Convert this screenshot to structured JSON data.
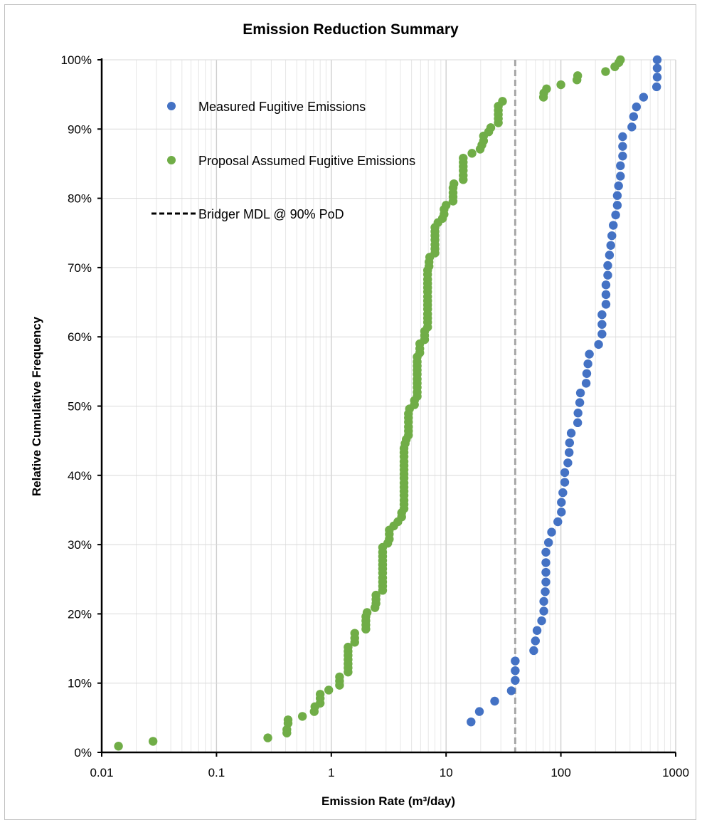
{
  "chart_data": {
    "type": "scatter",
    "title": "Emission Reduction Summary",
    "xlabel": "Emission Rate (m³/day)",
    "ylabel": "Relative Cumulative Frequency",
    "x_scale": "log",
    "xlim": [
      0.01,
      1000
    ],
    "ylim": [
      0,
      1
    ],
    "x_ticks": [
      "0.01",
      "0.1",
      "1",
      "10",
      "100",
      "1000"
    ],
    "y_ticks": [
      "0%",
      "10%",
      "20%",
      "30%",
      "40%",
      "50%",
      "60%",
      "70%",
      "80%",
      "90%",
      "100%"
    ],
    "grid": true,
    "legend_position": "top-left",
    "series": [
      {
        "name": "Measured Fugitive Emissions",
        "color": "#4472c4",
        "marker": "circle",
        "points": [
          [
            16.5,
            0.044
          ],
          [
            19.5,
            0.059
          ],
          [
            26.5,
            0.074
          ],
          [
            37,
            0.089
          ],
          [
            40,
            0.104
          ],
          [
            40,
            0.118
          ],
          [
            40,
            0.132
          ],
          [
            58,
            0.147
          ],
          [
            60,
            0.161
          ],
          [
            62,
            0.176
          ],
          [
            68,
            0.19
          ],
          [
            71,
            0.204
          ],
          [
            71,
            0.218
          ],
          [
            73,
            0.232
          ],
          [
            74,
            0.246
          ],
          [
            74,
            0.26
          ],
          [
            74,
            0.274
          ],
          [
            74,
            0.289
          ],
          [
            78,
            0.303
          ],
          [
            83,
            0.318
          ],
          [
            94,
            0.333
          ],
          [
            101,
            0.347
          ],
          [
            101,
            0.361
          ],
          [
            104,
            0.375
          ],
          [
            108,
            0.39
          ],
          [
            108,
            0.404
          ],
          [
            115,
            0.418
          ],
          [
            118,
            0.433
          ],
          [
            119,
            0.447
          ],
          [
            123,
            0.461
          ],
          [
            140,
            0.476
          ],
          [
            141,
            0.49
          ],
          [
            146,
            0.505
          ],
          [
            148,
            0.519
          ],
          [
            166,
            0.533
          ],
          [
            168,
            0.547
          ],
          [
            172,
            0.561
          ],
          [
            177,
            0.575
          ],
          [
            213,
            0.589
          ],
          [
            228,
            0.604
          ],
          [
            228,
            0.618
          ],
          [
            228,
            0.632
          ],
          [
            247,
            0.647
          ],
          [
            247,
            0.661
          ],
          [
            247,
            0.675
          ],
          [
            256,
            0.689
          ],
          [
            256,
            0.703
          ],
          [
            265,
            0.718
          ],
          [
            272,
            0.732
          ],
          [
            278,
            0.746
          ],
          [
            286,
            0.761
          ],
          [
            300,
            0.776
          ],
          [
            310,
            0.79
          ],
          [
            310,
            0.804
          ],
          [
            318,
            0.818
          ],
          [
            330,
            0.832
          ],
          [
            330,
            0.847
          ],
          [
            345,
            0.861
          ],
          [
            345,
            0.875
          ],
          [
            345,
            0.889
          ],
          [
            415,
            0.903
          ],
          [
            430,
            0.918
          ],
          [
            455,
            0.932
          ],
          [
            525,
            0.946
          ],
          [
            682,
            0.961
          ],
          [
            690,
            0.975
          ],
          [
            690,
            0.988
          ],
          [
            690,
            1.0
          ]
        ]
      },
      {
        "name": "Proposal Assumed Fugitive Emissions",
        "color": "#70ad47",
        "marker": "circle",
        "points": [
          [
            0.014,
            0.009
          ],
          [
            0.028,
            0.016
          ],
          [
            0.28,
            0.021
          ],
          [
            0.41,
            0.028
          ],
          [
            0.41,
            0.033
          ],
          [
            0.42,
            0.042
          ],
          [
            0.42,
            0.047
          ],
          [
            0.56,
            0.052
          ],
          [
            0.71,
            0.059
          ],
          [
            0.72,
            0.066
          ],
          [
            0.8,
            0.071
          ],
          [
            0.8,
            0.078
          ],
          [
            0.8,
            0.084
          ],
          [
            0.95,
            0.09
          ],
          [
            1.18,
            0.097
          ],
          [
            1.18,
            0.103
          ],
          [
            1.18,
            0.109
          ],
          [
            1.4,
            0.116
          ],
          [
            1.4,
            0.122
          ],
          [
            1.4,
            0.128
          ],
          [
            1.4,
            0.134
          ],
          [
            1.4,
            0.14
          ],
          [
            1.4,
            0.146
          ],
          [
            1.4,
            0.152
          ],
          [
            1.6,
            0.159
          ],
          [
            1.6,
            0.165
          ],
          [
            1.6,
            0.172
          ],
          [
            2.0,
            0.178
          ],
          [
            2.0,
            0.184
          ],
          [
            2.0,
            0.19
          ],
          [
            2.0,
            0.196
          ],
          [
            2.05,
            0.202
          ],
          [
            2.4,
            0.209
          ],
          [
            2.45,
            0.215
          ],
          [
            2.45,
            0.221
          ],
          [
            2.45,
            0.227
          ],
          [
            2.8,
            0.234
          ],
          [
            2.8,
            0.24
          ],
          [
            2.8,
            0.246
          ],
          [
            2.8,
            0.252
          ],
          [
            2.8,
            0.259
          ],
          [
            2.8,
            0.265
          ],
          [
            2.8,
            0.271
          ],
          [
            2.8,
            0.277
          ],
          [
            2.8,
            0.283
          ],
          [
            2.8,
            0.289
          ],
          [
            2.8,
            0.296
          ],
          [
            3.1,
            0.302
          ],
          [
            3.2,
            0.308
          ],
          [
            3.2,
            0.315
          ],
          [
            3.2,
            0.321
          ],
          [
            3.5,
            0.327
          ],
          [
            3.8,
            0.333
          ],
          [
            4.1,
            0.34
          ],
          [
            4.1,
            0.346
          ],
          [
            4.3,
            0.352
          ],
          [
            4.3,
            0.358
          ],
          [
            4.3,
            0.364
          ],
          [
            4.3,
            0.371
          ],
          [
            4.3,
            0.377
          ],
          [
            4.3,
            0.383
          ],
          [
            4.3,
            0.389
          ],
          [
            4.3,
            0.396
          ],
          [
            4.3,
            0.402
          ],
          [
            4.3,
            0.408
          ],
          [
            4.3,
            0.414
          ],
          [
            4.3,
            0.42
          ],
          [
            4.3,
            0.427
          ],
          [
            4.3,
            0.433
          ],
          [
            4.3,
            0.439
          ],
          [
            4.4,
            0.446
          ],
          [
            4.5,
            0.452
          ],
          [
            4.7,
            0.458
          ],
          [
            4.7,
            0.464
          ],
          [
            4.7,
            0.47
          ],
          [
            4.7,
            0.477
          ],
          [
            4.7,
            0.483
          ],
          [
            4.7,
            0.489
          ],
          [
            4.8,
            0.496
          ],
          [
            5.3,
            0.502
          ],
          [
            5.3,
            0.508
          ],
          [
            5.6,
            0.514
          ],
          [
            5.6,
            0.52
          ],
          [
            5.6,
            0.527
          ],
          [
            5.6,
            0.533
          ],
          [
            5.6,
            0.539
          ],
          [
            5.6,
            0.546
          ],
          [
            5.6,
            0.552
          ],
          [
            5.6,
            0.558
          ],
          [
            5.6,
            0.564
          ],
          [
            5.6,
            0.571
          ],
          [
            5.9,
            0.577
          ],
          [
            5.9,
            0.583
          ],
          [
            5.9,
            0.59
          ],
          [
            6.5,
            0.596
          ],
          [
            6.5,
            0.602
          ],
          [
            6.5,
            0.608
          ],
          [
            6.9,
            0.614
          ],
          [
            6.9,
            0.621
          ],
          [
            6.9,
            0.627
          ],
          [
            6.9,
            0.633
          ],
          [
            6.9,
            0.64
          ],
          [
            6.9,
            0.646
          ],
          [
            6.9,
            0.652
          ],
          [
            6.9,
            0.658
          ],
          [
            6.9,
            0.665
          ],
          [
            6.9,
            0.671
          ],
          [
            6.9,
            0.677
          ],
          [
            6.9,
            0.683
          ],
          [
            6.9,
            0.69
          ],
          [
            6.9,
            0.696
          ],
          [
            7.1,
            0.702
          ],
          [
            7.1,
            0.708
          ],
          [
            7.2,
            0.715
          ],
          [
            8.0,
            0.721
          ],
          [
            8.0,
            0.727
          ],
          [
            8.0,
            0.733
          ],
          [
            8.0,
            0.74
          ],
          [
            8.0,
            0.746
          ],
          [
            8.0,
            0.752
          ],
          [
            8.0,
            0.758
          ],
          [
            8.5,
            0.765
          ],
          [
            9.3,
            0.771
          ],
          [
            9.6,
            0.777
          ],
          [
            9.6,
            0.784
          ],
          [
            10.0,
            0.79
          ],
          [
            11.5,
            0.796
          ],
          [
            11.5,
            0.802
          ],
          [
            11.5,
            0.808
          ],
          [
            11.5,
            0.815
          ],
          [
            11.7,
            0.821
          ],
          [
            14.1,
            0.827
          ],
          [
            14.1,
            0.833
          ],
          [
            14.1,
            0.84
          ],
          [
            14.1,
            0.846
          ],
          [
            14.1,
            0.852
          ],
          [
            14.1,
            0.858
          ],
          [
            16.8,
            0.865
          ],
          [
            19.8,
            0.871
          ],
          [
            20.5,
            0.877
          ],
          [
            21.2,
            0.883
          ],
          [
            21.2,
            0.89
          ],
          [
            23.5,
            0.896
          ],
          [
            24.5,
            0.902
          ],
          [
            28.5,
            0.909
          ],
          [
            28.5,
            0.915
          ],
          [
            28.5,
            0.921
          ],
          [
            28.5,
            0.927
          ],
          [
            28.5,
            0.933
          ],
          [
            31.0,
            0.94
          ],
          [
            70.5,
            0.946
          ],
          [
            71.0,
            0.952
          ],
          [
            75.0,
            0.958
          ],
          [
            100.0,
            0.964
          ],
          [
            138.0,
            0.971
          ],
          [
            140.0,
            0.977
          ],
          [
            245.0,
            0.983
          ],
          [
            295.0,
            0.99
          ],
          [
            320.0,
            0.996
          ],
          [
            330.0,
            1.0
          ]
        ]
      },
      {
        "name": "Bridger MDL @ 90% PoD",
        "type": "vline",
        "x": 40,
        "color": "#a6a6a6",
        "legend_color": "#000000",
        "dash": "dashed"
      }
    ]
  }
}
